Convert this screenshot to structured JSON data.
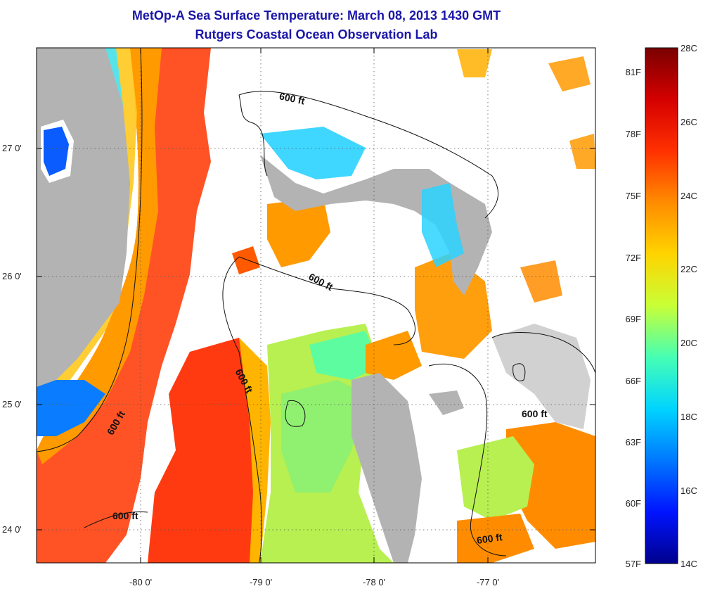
{
  "title": "MetOp-A Sea Surface Temperature:  March 08, 2013 1430 GMT",
  "subtitle": "Rutgers Coastal Ocean Observation Lab",
  "axes": {
    "x_ticks": [
      "-80 0'",
      "-79 0'",
      "-78 0'",
      "-77 0'"
    ],
    "y_ticks": [
      "27 0'",
      "26 0'",
      "25 0'",
      "24 0'"
    ]
  },
  "contour_label": "600 ft",
  "colorbar": {
    "celsius": [
      "28C",
      "26C",
      "24C",
      "22C",
      "20C",
      "18C",
      "16C",
      "14C"
    ],
    "fahrenheit": [
      "81F",
      "78F",
      "75F",
      "72F",
      "69F",
      "66F",
      "63F",
      "60F",
      "57F"
    ],
    "colors": [
      "#7a0000",
      "#d40000",
      "#ff3000",
      "#ff8c00",
      "#ffd400",
      "#c8ff36",
      "#46ffb4",
      "#00d4ff",
      "#0078ff",
      "#0014ff",
      "#00008c"
    ]
  },
  "colors": {
    "land": "#b3b3b3",
    "cloud": "#ffffff",
    "title": "#1b16a8"
  }
}
